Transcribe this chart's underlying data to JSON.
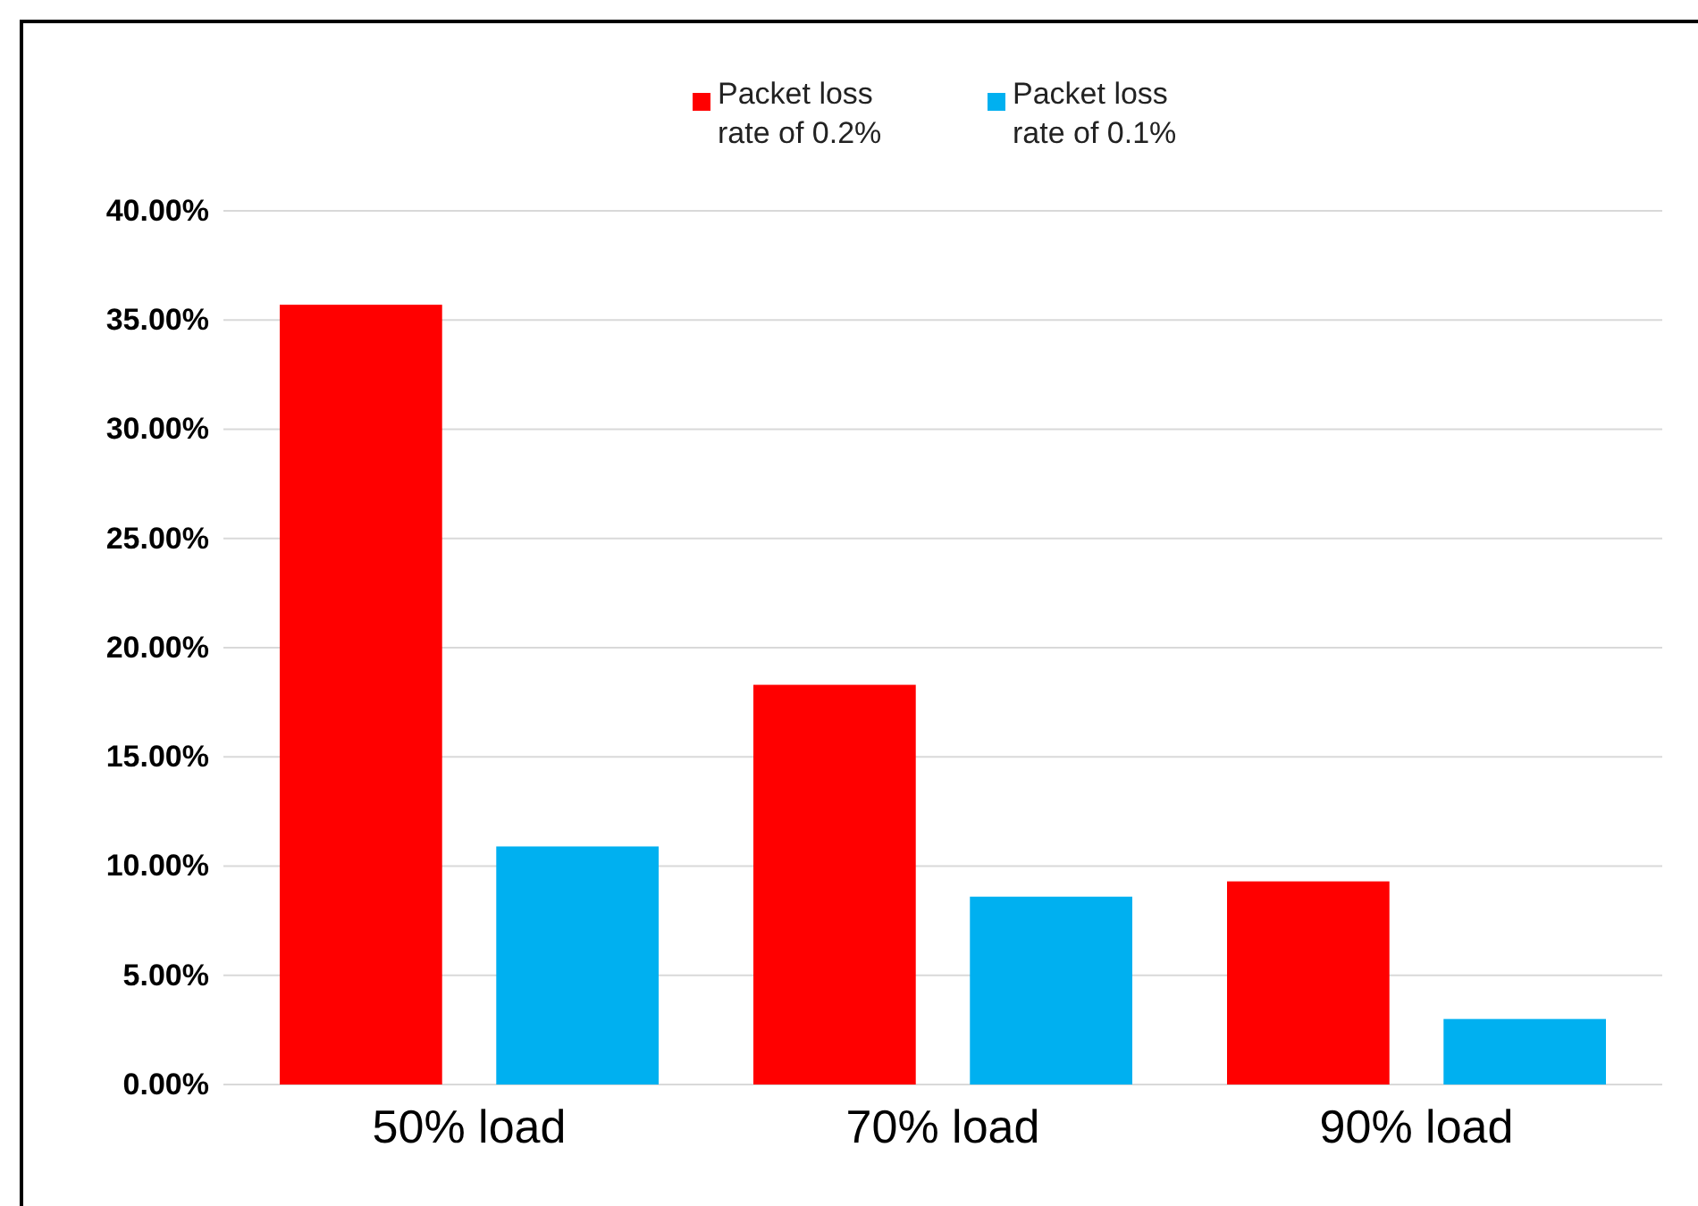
{
  "chart_data": {
    "type": "bar",
    "categories": [
      "50% load",
      "70% load",
      "90% load"
    ],
    "series": [
      {
        "name": "Packet loss rate of 0.2%",
        "color": "#ff0000",
        "values": [
          35.7,
          18.3,
          9.3
        ]
      },
      {
        "name": "Packet loss rate of 0.1%",
        "color": "#00b0f0",
        "values": [
          10.9,
          8.6,
          3.0
        ]
      }
    ],
    "ylim": [
      0,
      40
    ],
    "yticks": [
      {
        "value": 0,
        "label": "0.00%"
      },
      {
        "value": 5,
        "label": "5.00%"
      },
      {
        "value": 10,
        "label": "10.00%"
      },
      {
        "value": 15,
        "label": "15.00%"
      },
      {
        "value": 20,
        "label": "20.00%"
      },
      {
        "value": 25,
        "label": "25.00%"
      },
      {
        "value": 30,
        "label": "30.00%"
      },
      {
        "value": 35,
        "label": "35.00%"
      },
      {
        "value": 40,
        "label": "40.00%"
      }
    ],
    "grid": "y",
    "legend": "top"
  }
}
